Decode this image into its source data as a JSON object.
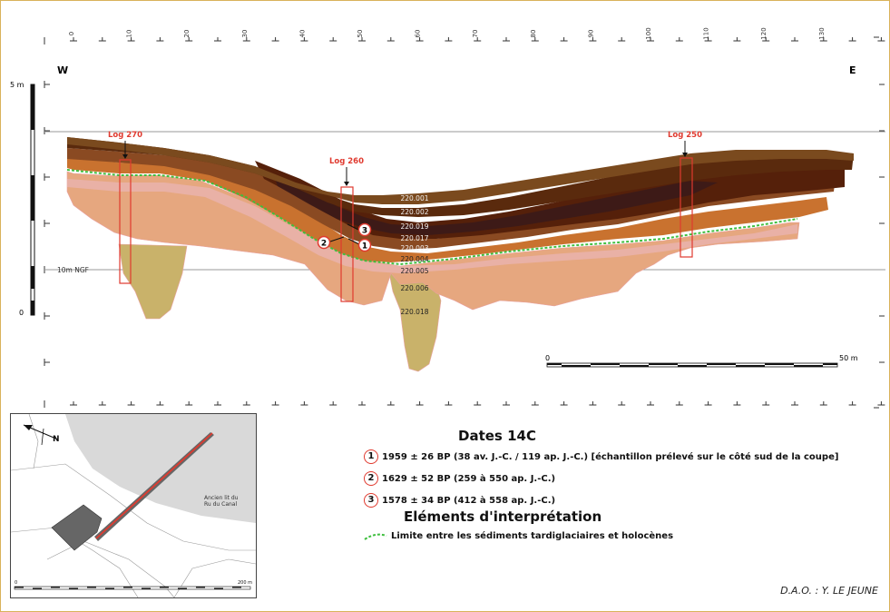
{
  "top_ruler": {
    "ticks": [
      "0",
      "10",
      "20",
      "30",
      "40",
      "50",
      "60",
      "70",
      "80",
      "90",
      "100",
      "110",
      "120",
      "130"
    ]
  },
  "orientation": {
    "west": "W",
    "east": "E"
  },
  "vertical_scale": {
    "top_label": "5 m",
    "bottom_label": "0"
  },
  "ngf_label": "10m NGF",
  "logs": [
    {
      "label": "Log 270"
    },
    {
      "label": "Log 260"
    },
    {
      "label": "Log 250"
    }
  ],
  "units": [
    "220.001",
    "220.002",
    "220.019",
    "220.017",
    "220.003",
    "220.004",
    "220.005",
    "220.006",
    "220.018"
  ],
  "markers": [
    "1",
    "2",
    "3"
  ],
  "horizontal_scale": {
    "start": "0",
    "end": "50 m"
  },
  "legend": {
    "dates_title": "Dates 14C",
    "dates": [
      {
        "num": "1",
        "text": "1959 ± 26 BP (38 av. J.-C. / 119 ap. J.-C.) [échantillon prélevé sur le côté sud de la coupe]"
      },
      {
        "num": "2",
        "text": "1629 ± 52 BP (259 à 550 ap. J.-C.)"
      },
      {
        "num": "3",
        "text": "1578 ± 34 BP (412 à 558 ap. J.-C.)"
      }
    ],
    "interp_title": "Eléments d'interprétation",
    "interp_item": "Limite entre les sédiments tardiglaciaires et holocènes"
  },
  "map": {
    "north": "N",
    "river_label_1": "Ancien lit du",
    "river_label_2": "Ru du Canal",
    "scale_start": "0",
    "scale_end": "200 m"
  },
  "credit": "D.A.O. : Y. LE JEUNE",
  "colors": {
    "log_red": "#e03a2f",
    "boundary_green": "#3fbf3f",
    "dark_brown": "#3e1606",
    "mid_brown": "#6b3312",
    "light_tan": "#e6a77f",
    "khaki": "#c9b26a"
  }
}
